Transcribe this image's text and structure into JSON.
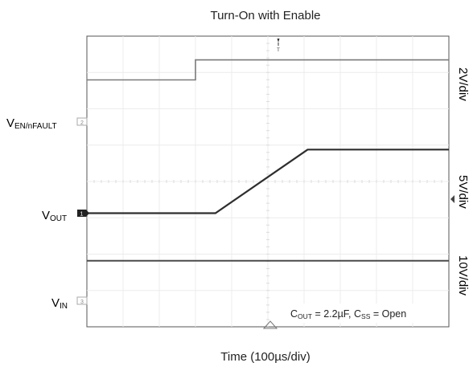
{
  "chart_data": {
    "type": "line",
    "title": "Turn-On with Enable",
    "xlabel": "Time (100µs/div)",
    "ylabel": "",
    "x_divisions": 10,
    "y_divisions": 8,
    "grid": true,
    "series": [
      {
        "name": "V_EN/nFAULT",
        "label_main": "V",
        "label_sub": "EN/nFAULT",
        "channel": "2",
        "scale": "2V/div",
        "color": "#7a7a7a",
        "x": [
          0,
          3.0,
          3.0,
          10
        ],
        "y": [
          1.15,
          1.15,
          1.7,
          1.7
        ]
      },
      {
        "name": "V_OUT",
        "label_main": "V",
        "label_sub": "OUT",
        "channel": "1",
        "scale": "5V/div",
        "color": "#2e2e2e",
        "x": [
          0,
          3.55,
          6.1,
          10
        ],
        "y": [
          0,
          0,
          1.75,
          1.75
        ]
      },
      {
        "name": "V_IN",
        "label_main": "V",
        "label_sub": "IN",
        "channel": "3",
        "scale": "10V/div",
        "color": "#4a4a4a",
        "x": [
          0,
          10
        ],
        "y": [
          1.1,
          1.1
        ]
      }
    ],
    "annotation": {
      "c_out_main": "C",
      "c_out_sub": "OUT",
      "c_out_value": " = 2.2µF, ",
      "c_ss_main": "C",
      "c_ss_sub": "SS",
      "c_ss_value": " = Open"
    }
  }
}
